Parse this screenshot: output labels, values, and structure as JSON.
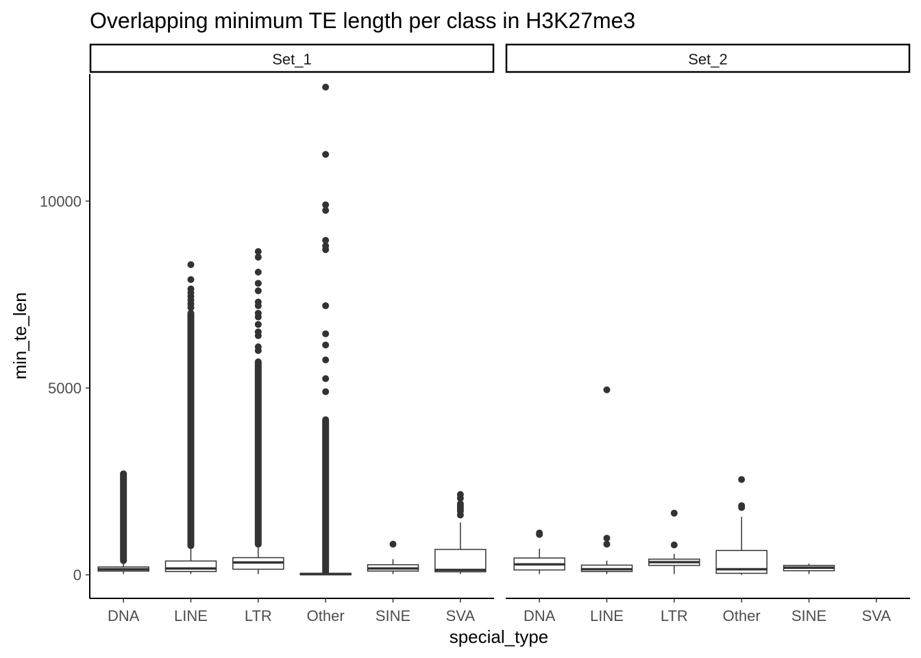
{
  "chart_data": {
    "type": "boxplot",
    "title": "Overlapping minimum TE length per class in H3K27me3",
    "xlabel": "special_type",
    "ylabel": "min_te_len",
    "categories": [
      "DNA",
      "LINE",
      "LTR",
      "Other",
      "SINE",
      "SVA"
    ],
    "y_ticks": [
      0,
      5000,
      10000
    ],
    "ylim": [
      -630,
      13400
    ],
    "grid": false,
    "legend": "none",
    "colors": {
      "box_outline": "#333333",
      "outlier": "#333333",
      "axis": "#000000",
      "background": "#ffffff"
    },
    "facets": [
      {
        "label": "Set_1",
        "boxes": [
          {
            "category": "DNA",
            "q1": 100,
            "median": 150,
            "q3": 210,
            "lower": 20,
            "upper": 380,
            "outlier_range": [
              380,
              2700
            ],
            "outliers": [
              2550,
              2700
            ]
          },
          {
            "category": "LINE",
            "q1": 90,
            "median": 170,
            "q3": 370,
            "lower": 20,
            "upper": 780,
            "outlier_range": [
              780,
              7000
            ],
            "outliers": [
              7150,
              7250,
              7350,
              7450,
              7550,
              7650,
              7900,
              8300
            ]
          },
          {
            "category": "LTR",
            "q1": 150,
            "median": 330,
            "q3": 460,
            "lower": 20,
            "upper": 820,
            "outlier_range": [
              820,
              5700
            ],
            "outliers": [
              6000,
              6100,
              6400,
              6500,
              6700,
              6900,
              7000,
              7200,
              7300,
              7600,
              7800,
              8100,
              8500,
              8650
            ]
          },
          {
            "category": "Other",
            "q1": 0,
            "median": 20,
            "q3": 40,
            "lower": 0,
            "upper": 80,
            "outlier_range": [
              80,
              4150
            ],
            "outliers": [
              4900,
              5250,
              5750,
              6150,
              6450,
              7200,
              8700,
              8800,
              8950,
              9750,
              9900,
              11250,
              13050
            ]
          },
          {
            "category": "SINE",
            "q1": 100,
            "median": 170,
            "q3": 270,
            "lower": 20,
            "upper": 420,
            "outlier_range": null,
            "outliers": [
              820
            ]
          },
          {
            "category": "SVA",
            "q1": 80,
            "median": 130,
            "q3": 680,
            "lower": 20,
            "upper": 1400,
            "outlier_range": null,
            "outliers": [
              1600,
              1700,
              1750,
              1800,
              1850,
              1900,
              2050,
              2150
            ]
          }
        ]
      },
      {
        "label": "Set_2",
        "boxes": [
          {
            "category": "DNA",
            "q1": 130,
            "median": 280,
            "q3": 450,
            "lower": 20,
            "upper": 700,
            "outlier_range": null,
            "outliers": [
              1080,
              1120
            ]
          },
          {
            "category": "LINE",
            "q1": 90,
            "median": 150,
            "q3": 260,
            "lower": 20,
            "upper": 380,
            "outlier_range": null,
            "outliers": [
              820,
              980,
              4950
            ]
          },
          {
            "category": "LTR",
            "q1": 250,
            "median": 340,
            "q3": 420,
            "lower": 20,
            "upper": 560,
            "outlier_range": null,
            "outliers": [
              800,
              1650
            ]
          },
          {
            "category": "Other",
            "q1": 40,
            "median": 150,
            "q3": 650,
            "lower": 0,
            "upper": 1550,
            "outlier_range": null,
            "outliers": [
              1800,
              1850,
              2550
            ]
          },
          {
            "category": "SINE",
            "q1": 110,
            "median": 190,
            "q3": 250,
            "lower": 20,
            "upper": 300,
            "outlier_range": null,
            "outliers": []
          }
        ]
      }
    ]
  }
}
